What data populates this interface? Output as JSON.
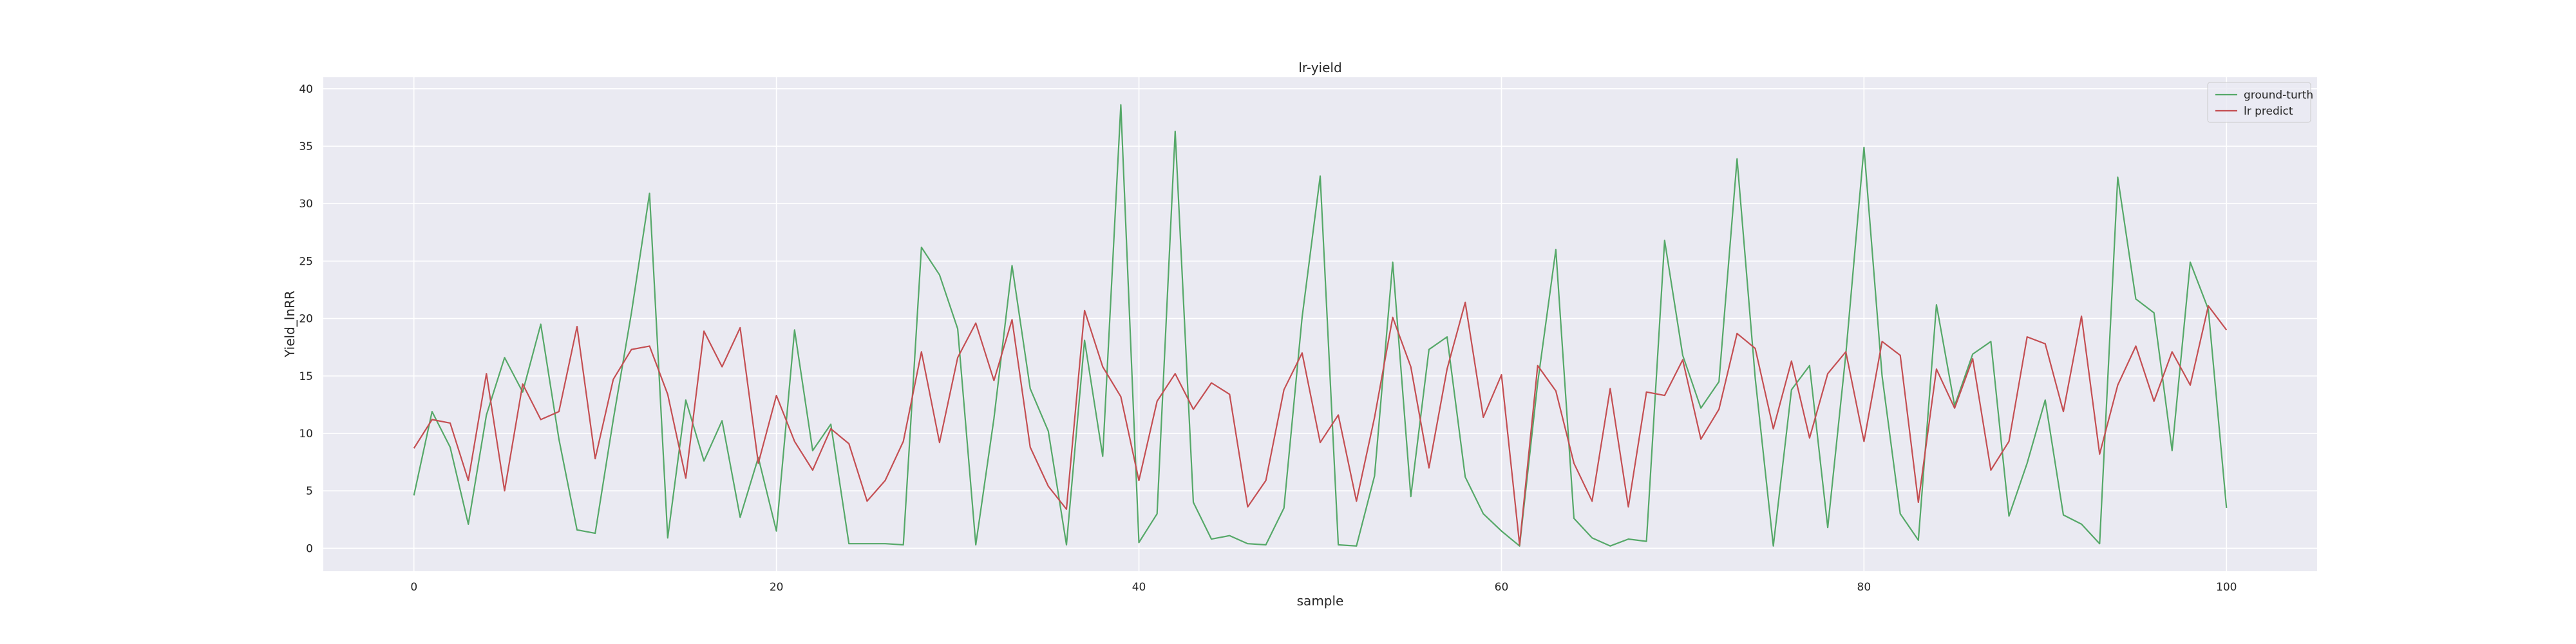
{
  "chart_data": {
    "type": "line",
    "title": "lr-yield",
    "xlabel": "sample",
    "ylabel": "Yield_lnRR",
    "xlim": [
      -5,
      105
    ],
    "ylim": [
      -2,
      41
    ],
    "xticks": [
      0,
      20,
      40,
      60,
      80,
      100
    ],
    "yticks": [
      0,
      5,
      10,
      15,
      20,
      25,
      30,
      35,
      40
    ],
    "grid": true,
    "legend_position": "top-right",
    "x": [
      0,
      1,
      2,
      3,
      4,
      5,
      6,
      7,
      8,
      9,
      10,
      11,
      12,
      13,
      14,
      15,
      16,
      17,
      18,
      19,
      20,
      21,
      22,
      23,
      24,
      25,
      26,
      27,
      28,
      29,
      30,
      31,
      32,
      33,
      34,
      35,
      36,
      37,
      38,
      39,
      40,
      41,
      42,
      43,
      44,
      45,
      46,
      47,
      48,
      49,
      50,
      51,
      52,
      53,
      54,
      55,
      56,
      57,
      58,
      59,
      60,
      61,
      62,
      63,
      64,
      65,
      66,
      67,
      68,
      69,
      70,
      71,
      72,
      73,
      74,
      75,
      76,
      77,
      78,
      79,
      80,
      81,
      82,
      83,
      84,
      85,
      86,
      87,
      88,
      89,
      90,
      91,
      92,
      93,
      94,
      95,
      96,
      97,
      98,
      99,
      100
    ],
    "series": [
      {
        "name": "ground-turth",
        "color": "#55a868",
        "values": [
          4.6,
          11.9,
          8.8,
          2.1,
          11.6,
          16.6,
          13.6,
          19.5,
          9.5,
          1.6,
          1.3,
          11.2,
          20.5,
          30.9,
          0.9,
          12.9,
          7.6,
          11.1,
          2.7,
          7.9,
          1.5,
          19.0,
          8.5,
          10.8,
          0.4,
          0.4,
          0.4,
          0.3,
          26.2,
          23.8,
          19.1,
          0.3,
          11.3,
          24.6,
          13.9,
          10.2,
          0.3,
          18.1,
          8.0,
          38.6,
          0.5,
          3.0,
          36.3,
          4.0,
          0.8,
          1.1,
          0.4,
          0.3,
          3.5,
          20.1,
          32.4,
          0.3,
          0.2,
          6.3,
          24.9,
          4.5,
          17.3,
          18.4,
          6.2,
          3.0,
          1.5,
          0.2,
          14.4,
          26.0,
          2.6,
          0.9,
          0.2,
          0.8,
          0.6,
          26.8,
          16.8,
          12.2,
          14.5,
          33.9,
          14.8,
          0.2,
          13.8,
          15.9,
          1.8,
          16.9,
          34.9,
          15.0,
          3.0,
          0.7,
          21.2,
          12.4,
          16.9,
          18.0,
          2.8,
          7.4,
          12.9,
          2.9,
          2.1,
          0.4,
          32.3,
          21.7,
          20.5,
          8.5,
          24.9,
          20.8,
          3.5
        ]
      },
      {
        "name": "lr predict",
        "color": "#c44e52",
        "values": [
          8.7,
          11.2,
          10.9,
          5.9,
          15.2,
          5.0,
          14.3,
          11.2,
          11.9,
          19.3,
          7.8,
          14.7,
          17.3,
          17.6,
          13.4,
          6.1,
          18.9,
          15.8,
          19.2,
          7.4,
          13.3,
          9.3,
          6.8,
          10.4,
          9.1,
          4.1,
          5.9,
          9.3,
          17.1,
          9.2,
          16.6,
          19.6,
          14.6,
          19.9,
          8.8,
          5.4,
          3.4,
          20.7,
          15.8,
          13.2,
          5.9,
          12.8,
          15.2,
          12.1,
          14.4,
          13.4,
          3.6,
          5.9,
          13.8,
          17.0,
          9.2,
          11.6,
          4.1,
          11.4,
          20.1,
          15.8,
          7.0,
          15.6,
          21.4,
          11.4,
          15.1,
          0.3,
          15.9,
          13.7,
          7.4,
          4.1,
          13.9,
          3.6,
          13.6,
          13.3,
          16.4,
          9.5,
          12.1,
          18.7,
          17.4,
          10.4,
          16.3,
          9.6,
          15.2,
          17.1,
          9.3,
          18.0,
          16.8,
          4.0,
          15.6,
          12.2,
          16.5,
          6.8,
          9.3,
          18.4,
          17.8,
          11.9,
          20.2,
          8.2,
          14.2,
          17.6,
          12.8,
          17.1,
          14.2,
          21.1,
          19.0
        ]
      }
    ]
  }
}
